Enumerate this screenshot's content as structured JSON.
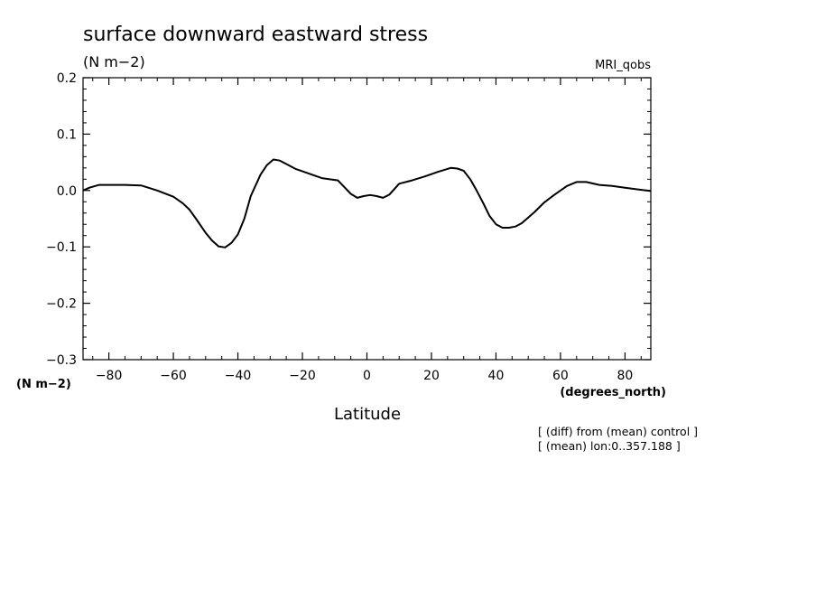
{
  "chart_data": {
    "type": "line",
    "title": "surface downward eastward stress",
    "units_label": "(N m−2)",
    "model_label": "MRI_qobs",
    "ylabel": "(N m−2)",
    "xlabel": "Latitude",
    "xunits_label": "(degrees_north)",
    "notes": [
      "[ (diff) from (mean) control ]",
      "[ (mean) lon:0..357.188 ]"
    ],
    "xlim": [
      -88,
      88
    ],
    "ylim": [
      -0.3,
      0.2
    ],
    "xticks": [
      -80,
      -60,
      -40,
      -20,
      0,
      20,
      40,
      60,
      80
    ],
    "xtick_labels": [
      "−80",
      "−60",
      "−40",
      "−20",
      "0",
      "20",
      "40",
      "60",
      "80"
    ],
    "yticks": [
      0.2,
      0.1,
      0.0,
      -0.1,
      -0.2,
      -0.3
    ],
    "ytick_labels": [
      "0.2",
      "0.1",
      "0.0",
      "−0.1",
      "−0.2",
      "−0.3"
    ],
    "grid": false,
    "series": [
      {
        "color": "#000000",
        "x": [
          -88,
          -86,
          -83,
          -80,
          -75,
          -70,
          -65,
          -60,
          -57,
          -55,
          -53,
          -50,
          -48,
          -46,
          -44,
          -42,
          -40,
          -38,
          -36,
          -33,
          -31,
          -29,
          -27,
          -25,
          -22,
          -18,
          -14,
          -9,
          -7,
          -5,
          -3,
          -1,
          1,
          3,
          5,
          7,
          10,
          14,
          18,
          22,
          26,
          28,
          30,
          32,
          34,
          36,
          38,
          40,
          42,
          44,
          46,
          48,
          50,
          52,
          55,
          58,
          62,
          65,
          68,
          72,
          76,
          80,
          84,
          88
        ],
        "y": [
          0.0,
          0.005,
          0.01,
          0.01,
          0.01,
          0.009,
          0.0,
          -0.011,
          -0.023,
          -0.034,
          -0.05,
          -0.075,
          -0.089,
          -0.099,
          -0.101,
          -0.093,
          -0.078,
          -0.05,
          -0.01,
          0.028,
          0.045,
          0.055,
          0.053,
          0.047,
          0.038,
          0.03,
          0.022,
          0.018,
          0.006,
          -0.006,
          -0.013,
          -0.01,
          -0.008,
          -0.01,
          -0.013,
          -0.007,
          0.012,
          0.018,
          0.025,
          0.033,
          0.04,
          0.039,
          0.035,
          0.02,
          0.0,
          -0.022,
          -0.045,
          -0.06,
          -0.066,
          -0.066,
          -0.064,
          -0.058,
          -0.048,
          -0.038,
          -0.021,
          -0.008,
          0.008,
          0.015,
          0.015,
          0.01,
          0.008,
          0.005,
          0.002,
          -0.001
        ]
      }
    ]
  }
}
